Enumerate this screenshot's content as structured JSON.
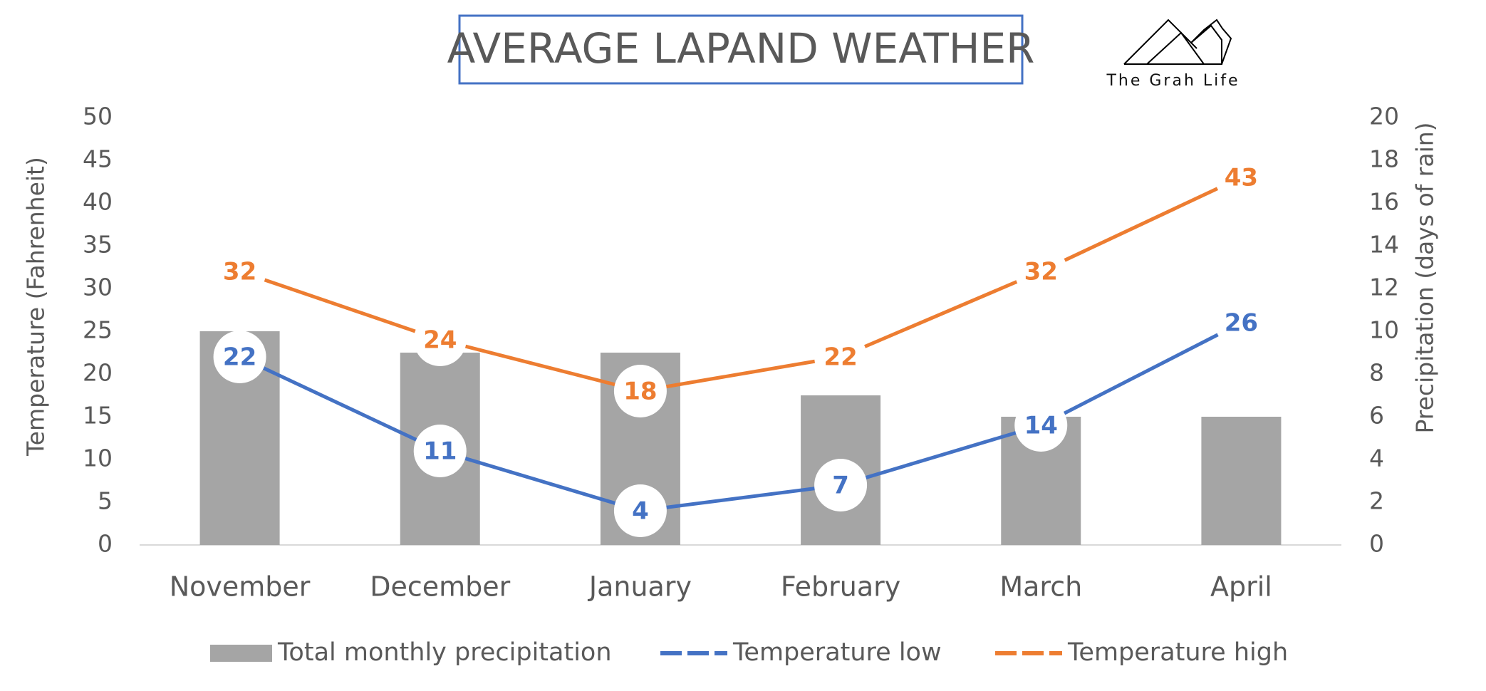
{
  "chart_data": {
    "type": "combo",
    "title": "AVERAGE LAPAND WEATHER",
    "logo_text": "The Grah Life",
    "y_label": "Temperature (Fahrenheit)",
    "y2_label": "Precipitation (days of rain)",
    "categories": [
      "November",
      "December",
      "January",
      "February",
      "March",
      "April"
    ],
    "series": [
      {
        "name": "Total monthly precipitation",
        "type": "bar",
        "axis": "y2",
        "color": "#a5a5a5",
        "values": [
          10,
          9,
          9,
          7,
          6,
          6
        ]
      },
      {
        "name": "Temperature low",
        "type": "line",
        "color": "#4472c4",
        "values": [
          22,
          11,
          4,
          7,
          14,
          26
        ]
      },
      {
        "name": "Temperature high",
        "type": "line",
        "color": "#ed7d31",
        "values": [
          32,
          24,
          18,
          22,
          32,
          43
        ]
      }
    ],
    "ylim": [
      0,
      50
    ],
    "yticks": [
      0,
      5,
      10,
      15,
      20,
      25,
      30,
      35,
      40,
      45,
      50
    ],
    "y2lim": [
      0,
      20
    ],
    "y2ticks": [
      0,
      2,
      4,
      6,
      8,
      10,
      12,
      14,
      16,
      18,
      20
    ],
    "grid": false,
    "legend": "bottom"
  }
}
